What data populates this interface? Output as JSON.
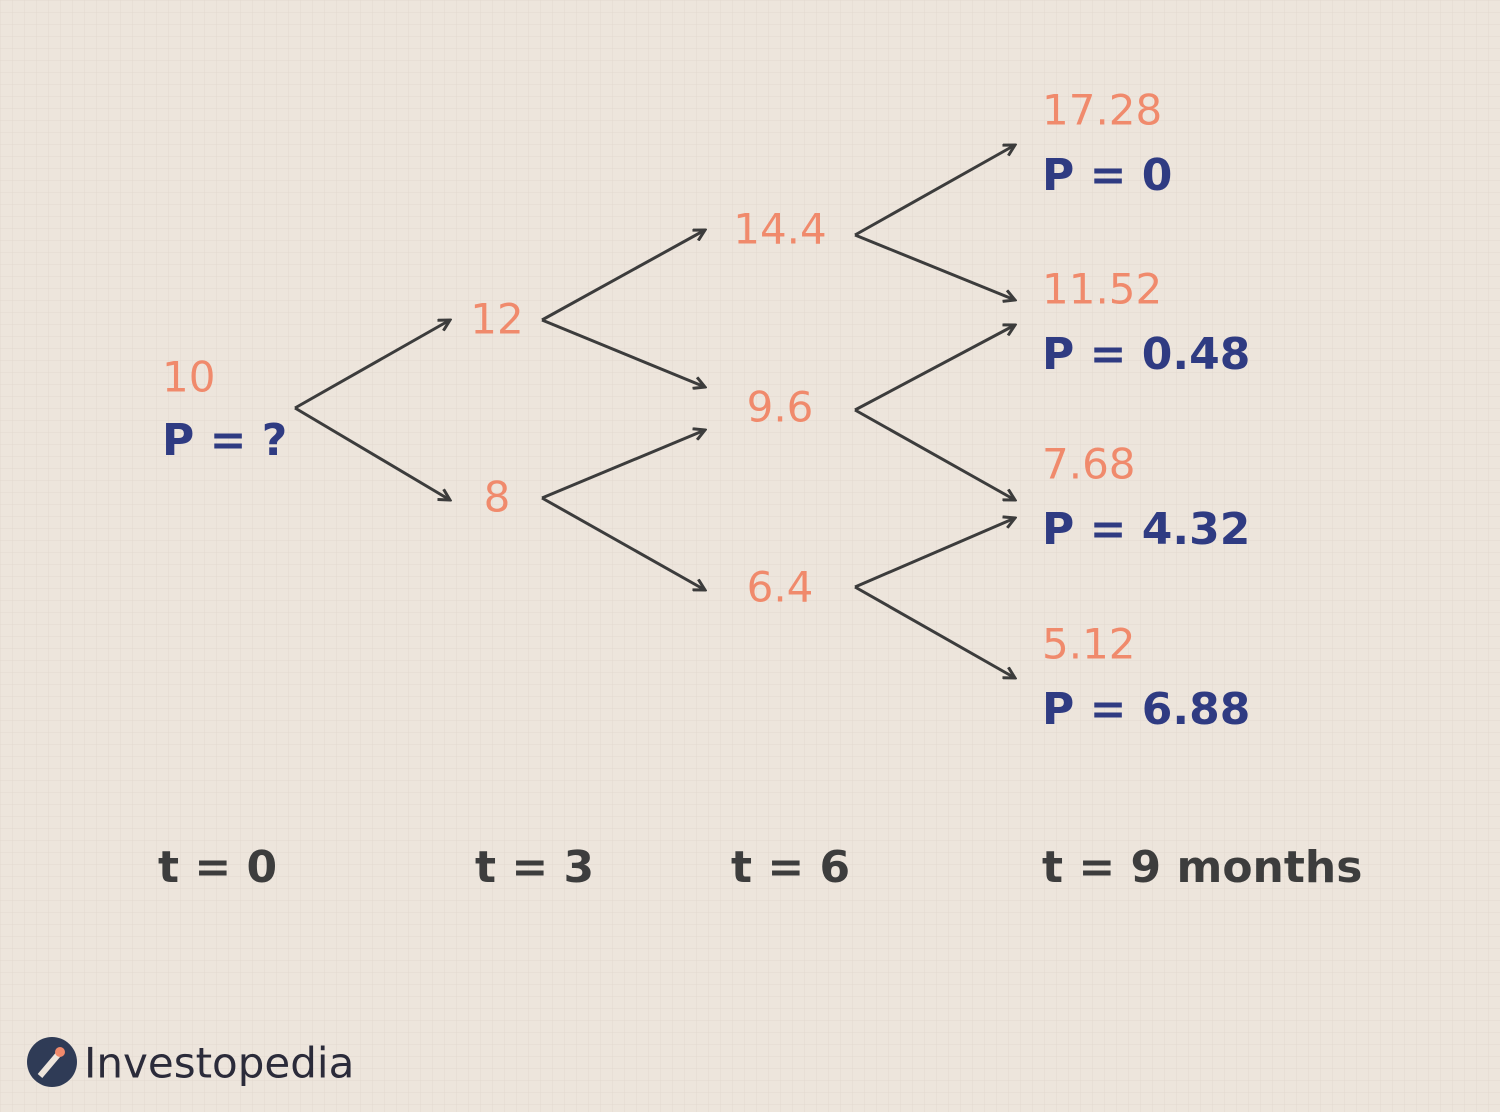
{
  "nodes": [
    {
      "price": "10",
      "option": "P = ?"
    },
    {
      "price": "12"
    },
    {
      "price": "8"
    },
    {
      "price": "14.4"
    },
    {
      "price": "9.6"
    },
    {
      "price": "6.4"
    },
    {
      "price": "17.28",
      "option": "P = 0"
    },
    {
      "price": "11.52",
      "option": "P = 0.48"
    },
    {
      "price": "7.68",
      "option": "P = 4.32"
    },
    {
      "price": "5.12",
      "option": "P = 6.88"
    }
  ],
  "time_labels": [
    "t = 0",
    "t = 3",
    "t = 6",
    "t = 9 months"
  ],
  "brand": "Investopedia"
}
